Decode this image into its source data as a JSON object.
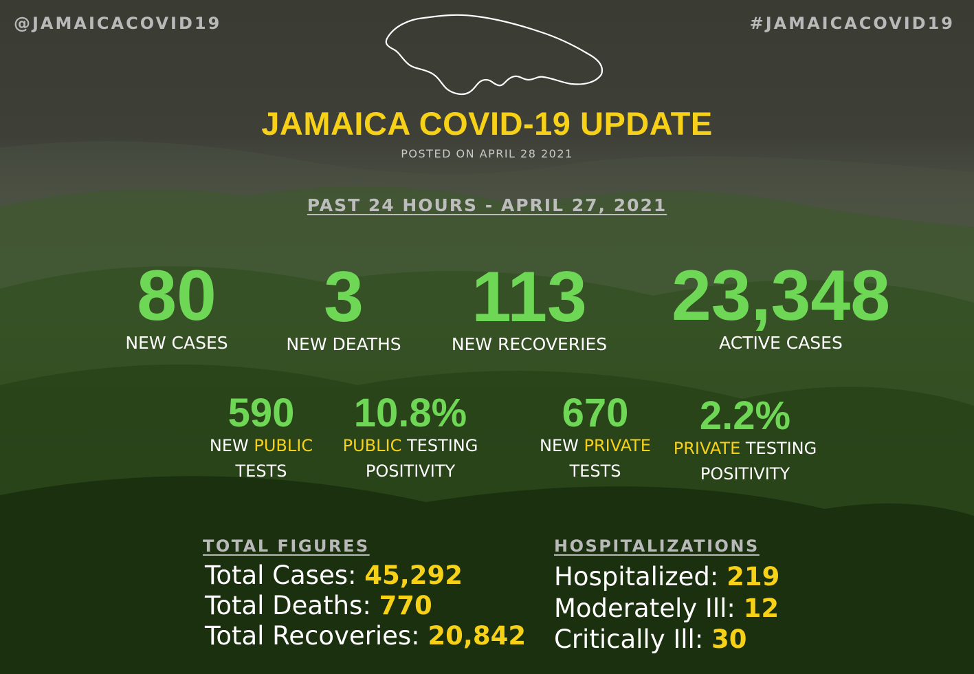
{
  "header": {
    "handle_left": "@JAMAICACOVID19",
    "handle_right": "#JAMAICACOVID19",
    "title": "JAMAICA COVID-19 UPDATE",
    "posted": "POSTED ON APRIL 28 2021",
    "period": "PAST 24 HOURS - APRIL 27, 2021"
  },
  "colors": {
    "accent_green": "#6ed856",
    "accent_yellow": "#f7d117",
    "muted_text": "#b9b9b9"
  },
  "daily": [
    {
      "value": "80",
      "label": "NEW CASES"
    },
    {
      "value": "3",
      "label": "NEW DEATHS"
    },
    {
      "value": "113",
      "label": "NEW RECOVERIES"
    },
    {
      "value": "23,348",
      "label": "ACTIVE CASES"
    }
  ],
  "testing": [
    {
      "value": "590",
      "label_a": "NEW ",
      "label_hl": "PUBLIC",
      "label_b": "",
      "label_line2": "TESTS"
    },
    {
      "value": "10.8%",
      "label_a": "",
      "label_hl": "PUBLIC",
      "label_b": " TESTING",
      "label_line2": "POSITIVITY"
    },
    {
      "value": "670",
      "label_a": "NEW ",
      "label_hl": "PRIVATE",
      "label_b": "",
      "label_line2": "TESTS"
    },
    {
      "value": "2.2%",
      "label_a": "",
      "label_hl": "PRIVATE",
      "label_b": " TESTING",
      "label_line2": "POSITIVITY"
    }
  ],
  "totals": {
    "heading": "TOTAL FIGURES",
    "rows": [
      {
        "label": "Total Cases: ",
        "value": "45,292"
      },
      {
        "label": "Total Deaths: ",
        "value": "770"
      },
      {
        "label": "Total Recoveries: ",
        "value": "20,842"
      }
    ]
  },
  "hospitalizations": {
    "heading": "HOSPITALIZATIONS",
    "rows": [
      {
        "label": "Hospitalized: ",
        "value": "219"
      },
      {
        "label": "Moderately Ill: ",
        "value": "12"
      },
      {
        "label": "Critically Ill: ",
        "value": "30"
      }
    ]
  }
}
